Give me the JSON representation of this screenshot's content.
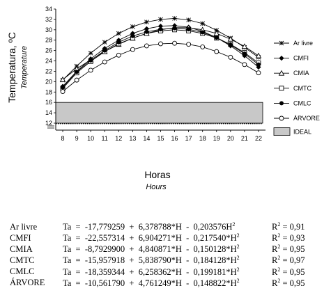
{
  "chart_data": {
    "type": "line",
    "ylabel": "Temperatura, ºC",
    "ylabel_en": "Temperature",
    "xlabel": "Horas",
    "xlabel_en": "Hours",
    "x": [
      8,
      9,
      10,
      11,
      12,
      13,
      14,
      15,
      16,
      17,
      18,
      19,
      20,
      21,
      22
    ],
    "xlim": [
      7.5,
      22.5
    ],
    "ylim": [
      12,
      34
    ],
    "y_ticks": [
      12,
      14,
      16,
      18,
      20,
      22,
      24,
      26,
      28,
      30,
      32,
      34
    ],
    "axis_break": true,
    "ideal_band": {
      "label": "IDEAL",
      "range": [
        12,
        16
      ],
      "color": "#c8c8c8"
    },
    "legend_position": "right",
    "series": [
      {
        "name": "Ar livre",
        "marker": "star",
        "values": [
          20.3,
          23.0,
          25.5,
          27.6,
          29.3,
          30.6,
          31.5,
          32.0,
          32.2,
          31.9,
          31.2,
          29.9,
          28.4,
          26.6,
          24.7
        ]
      },
      {
        "name": "CMFI",
        "marker": "diamond",
        "values": [
          19.1,
          22.0,
          24.4,
          26.4,
          28.0,
          29.3,
          30.2,
          30.7,
          30.8,
          30.5,
          29.7,
          28.5,
          26.9,
          25.0,
          22.8
        ]
      },
      {
        "name": "CMIA",
        "marker": "triangle",
        "values": [
          20.4,
          22.5,
          24.2,
          25.8,
          27.2,
          28.4,
          29.3,
          30.0,
          30.4,
          30.4,
          30.0,
          29.3,
          28.2,
          26.8,
          25.0
        ]
      },
      {
        "name": "CMTC",
        "marker": "square",
        "values": [
          18.7,
          21.7,
          23.9,
          25.8,
          27.3,
          28.4,
          29.3,
          29.8,
          30.0,
          29.8,
          29.3,
          28.4,
          27.2,
          25.6,
          23.6
        ]
      },
      {
        "name": "CMLC",
        "marker": "circle-filled",
        "values": [
          18.9,
          21.9,
          24.1,
          26.0,
          27.6,
          28.8,
          29.6,
          30.1,
          30.3,
          30.1,
          29.5,
          28.5,
          27.1,
          25.4,
          23.3
        ]
      },
      {
        "name": "ÁRVORE",
        "marker": "circle-open",
        "values": [
          18.1,
          20.3,
          22.2,
          23.8,
          25.1,
          26.2,
          26.9,
          27.3,
          27.4,
          27.2,
          26.7,
          25.8,
          24.7,
          23.3,
          21.7
        ]
      }
    ]
  },
  "equations": [
    {
      "label": "Ar livre",
      "expr_before": "Ta  =  -17,779259  +  6,378788*H  -  0,203576H",
      "exp": "2",
      "r2_prefix": "R",
      "r2_exp": "2",
      "r2_value": " = 0,91"
    },
    {
      "label": "CMFI",
      "expr_before": "Ta  =  -22,557314  +  6,904271*H  -  0,217540*H",
      "exp": "2",
      "r2_prefix": "R",
      "r2_exp": "2",
      "r2_value": " = 0,93"
    },
    {
      "label": "CMIA",
      "expr_before": "Ta  =  -8,7929900  +  4,840871*H  -  0,150128*H",
      "exp": "2",
      "r2_prefix": "R",
      "r2_exp": "2",
      "r2_value": " = 0,95"
    },
    {
      "label": "CMTC",
      "expr_before": "Ta  =  -15,957918  +  5,838790*H  -  0,184128*H",
      "exp": "2",
      "r2_prefix": "R",
      "r2_exp": "2",
      "r2_value": " = 0,97"
    },
    {
      "label": "CMLC",
      "expr_before": "Ta  =  -18,359344  +  6,258362*H  -  0,199181*H",
      "exp": "2",
      "r2_prefix": "R",
      "r2_exp": "2",
      "r2_value": " = 0,95"
    },
    {
      "label": "ÁRVORE",
      "expr_before": "Ta  =  -10,561790  +  4,761249*H  -  0,148822*H",
      "exp": "2",
      "r2_prefix": "R",
      "r2_exp": "2",
      "r2_value": " = 0,95"
    }
  ]
}
